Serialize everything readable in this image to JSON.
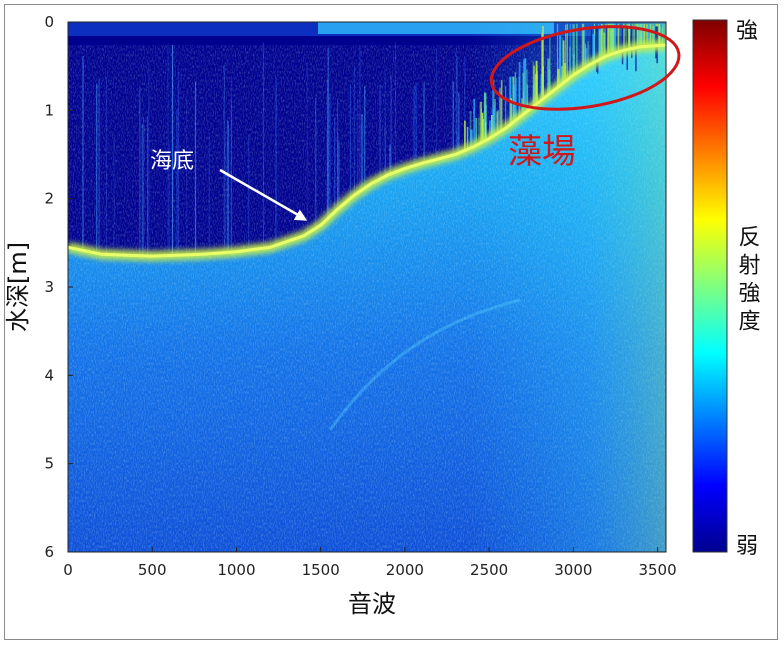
{
  "chart_data": {
    "type": "heatmap",
    "title": "",
    "xlabel": "音波",
    "ylabel": "水深[m]",
    "xlim": [
      0,
      3550
    ],
    "ylim": [
      0,
      6
    ],
    "y_inverted": true,
    "x_ticks": [
      0,
      500,
      1000,
      1500,
      2000,
      2500,
      3000,
      3500
    ],
    "y_ticks": [
      0,
      1,
      2,
      3,
      4,
      5,
      6
    ],
    "seabed_profile": {
      "x": [
        0,
        200,
        500,
        800,
        1000,
        1200,
        1400,
        1500,
        1600,
        1700,
        1800,
        1900,
        2000,
        2100,
        2200,
        2300,
        2400,
        2500,
        2600,
        2700,
        2800,
        2900,
        3000,
        3100,
        3200,
        3300,
        3400,
        3550
      ],
      "depth": [
        2.55,
        2.63,
        2.65,
        2.63,
        2.6,
        2.55,
        2.42,
        2.3,
        2.12,
        1.96,
        1.83,
        1.73,
        1.66,
        1.6,
        1.55,
        1.5,
        1.42,
        1.32,
        1.2,
        1.05,
        0.9,
        0.75,
        0.6,
        0.48,
        0.38,
        0.32,
        0.28,
        0.26
      ]
    },
    "colorbar": {
      "colormap": "jet",
      "label": "反射強度",
      "top_label": "強",
      "bottom_label": "弱"
    },
    "annotations": [
      {
        "text": "海底",
        "color": "#ffffff",
        "arrow_to": {
          "x": 1420,
          "depth": 2.25
        }
      },
      {
        "text": "藻場",
        "color": "#d0181b",
        "ellipse_center": {
          "x": 3070,
          "depth": 0.52
        },
        "ellipse_radius": {
          "x": 580,
          "depth": 0.52
        }
      }
    ],
    "colors": {
      "background_low": "#00008f",
      "seabed_high": "#c8f04a",
      "highlight": "#d0181b"
    }
  }
}
